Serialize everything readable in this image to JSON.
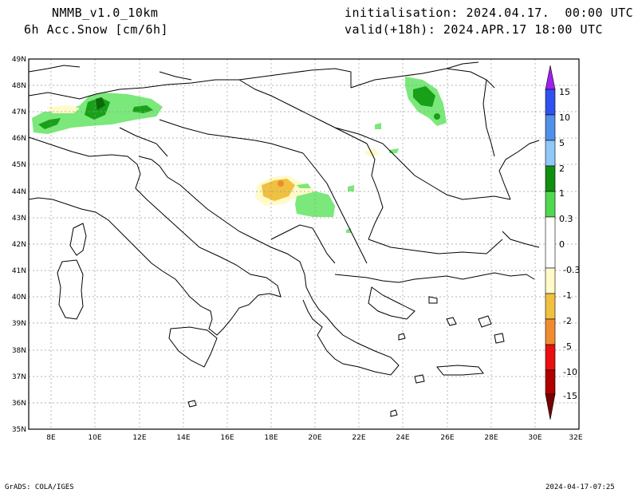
{
  "header": {
    "model": "NMMB_v1.0_10km",
    "variable": "6h Acc.Snow [cm/6h]",
    "initialisation": "initialisation: 2024.04.17.  00:00 UTC",
    "valid": "valid(+18h): 2024.APR.17 18:00 UTC"
  },
  "footer": {
    "credit": "GrADS: COLA/IGES",
    "timestamp": "2024-04-17-07:25"
  },
  "axes": {
    "lat_labels": [
      "49N",
      "48N",
      "47N",
      "46N",
      "45N",
      "44N",
      "43N",
      "42N",
      "41N",
      "40N",
      "39N",
      "38N",
      "37N",
      "36N",
      "35N"
    ],
    "lon_labels": [
      "8E",
      "10E",
      "12E",
      "14E",
      "16E",
      "18E",
      "20E",
      "22E",
      "24E",
      "26E",
      "28E",
      "30E",
      "32E"
    ]
  },
  "colorbar": {
    "labels": [
      "15",
      "10",
      "5",
      "2",
      "1",
      "0.3",
      "0",
      "-0.3",
      "-1",
      "-2",
      "-5",
      "-10",
      "-15"
    ],
    "colors": [
      "#a020f0",
      "#3050f0",
      "#5090e8",
      "#90c8f8",
      "#109010",
      "#50d850",
      "#ffffff",
      "#fffac8",
      "#f0c040",
      "#f08c30",
      "#e81010",
      "#b00000",
      "#780000"
    ]
  }
}
